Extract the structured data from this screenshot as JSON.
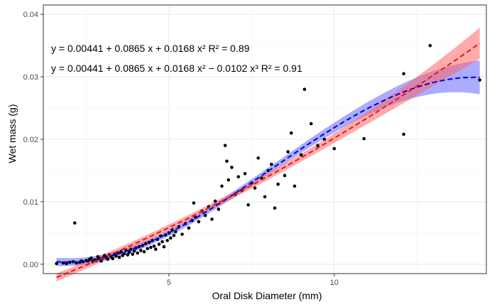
{
  "chart_data": {
    "type": "scatter",
    "xlabel": "Oral Disk Diameter (mm)",
    "ylabel": "Wet mass (g)",
    "xlim": [
      1.2,
      14.6
    ],
    "ylim": [
      -0.0015,
      0.0415
    ],
    "x_ticks": [
      5,
      10
    ],
    "x_tick_labels": [
      "5",
      "10"
    ],
    "y_ticks": [
      0,
      0.01,
      0.02,
      0.03,
      0.04
    ],
    "y_tick_labels": [
      "0.00",
      "0.01",
      "0.02",
      "0.03",
      "0.04"
    ],
    "grid": true,
    "annotations": [
      "y = 0.00441 + 0.0865 x + 0.0168 x² R² = 0.89",
      "y = 0.00441 + 0.0865 x + 0.0168 x² − 0.0102 x³ R² = 0.91"
    ],
    "colors": {
      "points": "#000000",
      "quadratic_line": "#e41a1c",
      "quadratic_band": "#ff6666",
      "cubic_line": "#0000cc",
      "cubic_band": "#6666ff"
    },
    "points": [
      [
        1.6,
        0.0001
      ],
      [
        1.8,
        0.0002
      ],
      [
        1.9,
        0.0001
      ],
      [
        2.0,
        0.0003
      ],
      [
        2.1,
        0.0004
      ],
      [
        2.15,
        0.0066
      ],
      [
        2.2,
        0.0002
      ],
      [
        2.3,
        0.0003
      ],
      [
        2.35,
        0.0005
      ],
      [
        2.4,
        0.0004
      ],
      [
        2.5,
        0.0006
      ],
      [
        2.55,
        0.0005
      ],
      [
        2.6,
        0.0008
      ],
      [
        2.65,
        0.001
      ],
      [
        2.7,
        0.0004
      ],
      [
        2.75,
        0.0007
      ],
      [
        2.8,
        0.0006
      ],
      [
        2.85,
        0.0012
      ],
      [
        2.9,
        0.0009
      ],
      [
        2.95,
        0.0005
      ],
      [
        3.0,
        0.001
      ],
      [
        3.05,
        0.0014
      ],
      [
        3.1,
        0.0011
      ],
      [
        3.15,
        0.0008
      ],
      [
        3.2,
        0.0015
      ],
      [
        3.25,
        0.0012
      ],
      [
        3.3,
        0.0009
      ],
      [
        3.35,
        0.0016
      ],
      [
        3.4,
        0.0013
      ],
      [
        3.45,
        0.0018
      ],
      [
        3.5,
        0.0011
      ],
      [
        3.55,
        0.002
      ],
      [
        3.6,
        0.0014
      ],
      [
        3.65,
        0.0017
      ],
      [
        3.7,
        0.0022
      ],
      [
        3.75,
        0.0015
      ],
      [
        3.8,
        0.0019
      ],
      [
        3.85,
        0.0024
      ],
      [
        3.9,
        0.0016
      ],
      [
        3.95,
        0.0021
      ],
      [
        4.0,
        0.0026
      ],
      [
        4.05,
        0.0018
      ],
      [
        4.1,
        0.0028
      ],
      [
        4.15,
        0.0022
      ],
      [
        4.2,
        0.003
      ],
      [
        4.25,
        0.002
      ],
      [
        4.3,
        0.0033
      ],
      [
        4.35,
        0.0025
      ],
      [
        4.4,
        0.0035
      ],
      [
        4.45,
        0.0027
      ],
      [
        4.5,
        0.0038
      ],
      [
        4.55,
        0.0029
      ],
      [
        4.6,
        0.0024
      ],
      [
        4.65,
        0.004
      ],
      [
        4.7,
        0.0032
      ],
      [
        4.75,
        0.0045
      ],
      [
        4.8,
        0.0036
      ],
      [
        4.85,
        0.0028
      ],
      [
        4.9,
        0.0047
      ],
      [
        4.95,
        0.0038
      ],
      [
        5.0,
        0.005
      ],
      [
        5.05,
        0.0042
      ],
      [
        5.1,
        0.0055
      ],
      [
        5.15,
        0.0046
      ],
      [
        5.2,
        0.0052
      ],
      [
        5.3,
        0.006
      ],
      [
        5.4,
        0.0048
      ],
      [
        5.5,
        0.0065
      ],
      [
        5.6,
        0.0058
      ],
      [
        5.7,
        0.007
      ],
      [
        5.75,
        0.0098
      ],
      [
        5.8,
        0.0075
      ],
      [
        5.9,
        0.0068
      ],
      [
        6.0,
        0.0085
      ],
      [
        6.1,
        0.0078
      ],
      [
        6.2,
        0.0092
      ],
      [
        6.3,
        0.0072
      ],
      [
        6.4,
        0.0101
      ],
      [
        6.5,
        0.0088
      ],
      [
        6.6,
        0.0125
      ],
      [
        6.7,
        0.019
      ],
      [
        6.75,
        0.0165
      ],
      [
        6.8,
        0.0135
      ],
      [
        6.9,
        0.0155
      ],
      [
        7.0,
        0.0112
      ],
      [
        7.1,
        0.014
      ],
      [
        7.2,
        0.0118
      ],
      [
        7.3,
        0.0145
      ],
      [
        7.4,
        0.0095
      ],
      [
        7.5,
        0.013
      ],
      [
        7.6,
        0.0122
      ],
      [
        7.7,
        0.017
      ],
      [
        7.8,
        0.0138
      ],
      [
        7.9,
        0.0108
      ],
      [
        8.0,
        0.015
      ],
      [
        8.1,
        0.016
      ],
      [
        8.2,
        0.009
      ],
      [
        8.3,
        0.0128
      ],
      [
        8.5,
        0.0142
      ],
      [
        8.6,
        0.018
      ],
      [
        8.7,
        0.021
      ],
      [
        8.8,
        0.0125
      ],
      [
        9.0,
        0.0175
      ],
      [
        9.1,
        0.028
      ],
      [
        9.3,
        0.0225
      ],
      [
        9.5,
        0.019
      ],
      [
        9.7,
        0.02
      ],
      [
        10.0,
        0.0185
      ],
      [
        10.9,
        0.0201
      ],
      [
        12.1,
        0.0208
      ],
      [
        12.1,
        0.0305
      ],
      [
        12.9,
        0.035
      ],
      [
        14.4,
        0.0295
      ]
    ]
  }
}
